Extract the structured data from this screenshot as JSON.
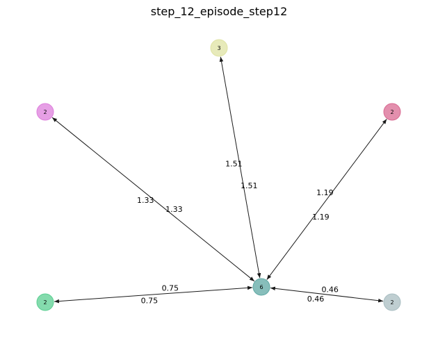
{
  "title": "step_12_episode_step12",
  "nodes": [
    {
      "id": "center",
      "label": "6",
      "color": "#5fa8a4"
    },
    {
      "id": "top",
      "label": "3",
      "color": "#dfe3a3"
    },
    {
      "id": "upper_left",
      "label": "2",
      "color": "#dd7fdc"
    },
    {
      "id": "upper_right",
      "label": "2",
      "color": "#d96a92"
    },
    {
      "id": "lower_left",
      "label": "2",
      "color": "#5bcf92"
    },
    {
      "id": "lower_right",
      "label": "2",
      "color": "#a9bec2"
    }
  ],
  "edges": [
    {
      "id": "center-top",
      "from": "center",
      "to": "top",
      "label_a": "1.51",
      "label_b": "1.51"
    },
    {
      "id": "center-upper_left",
      "from": "center",
      "to": "upper_left",
      "label_a": "1.33",
      "label_b": "1.33"
    },
    {
      "id": "center-upper_right",
      "from": "center",
      "to": "upper_right",
      "label_a": "1.19",
      "label_b": "1.19"
    },
    {
      "id": "center-lower_left",
      "from": "center",
      "to": "lower_left",
      "label_a": "0.75",
      "label_b": "0.75"
    },
    {
      "id": "center-lower_right",
      "from": "center",
      "to": "lower_right",
      "label_a": "0.46",
      "label_b": "0.46"
    }
  ]
}
